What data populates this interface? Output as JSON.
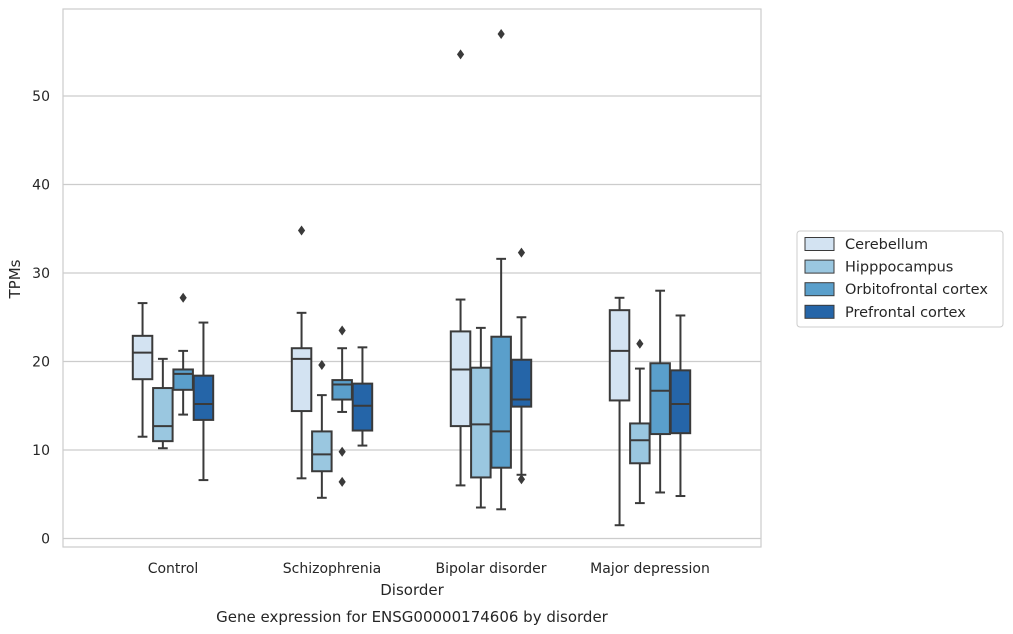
{
  "chart_data": {
    "type": "boxplot",
    "xlabel": "Disorder",
    "ylabel": "TPMs",
    "caption": "Gene expression for ENSG00000174606 by disorder",
    "categories": [
      "Control",
      "Schizophrenia",
      "Bipolar disorder",
      "Major depression"
    ],
    "ylim": [
      -1,
      60
    ],
    "yticks": [
      0,
      10,
      20,
      30,
      40,
      50
    ],
    "grid": "horizontal",
    "legend_position": "right",
    "series": [
      {
        "name": "Cerebellum",
        "color": "#d3e3f2",
        "boxes": [
          {
            "whisker_low": 11.5,
            "q1": 18.0,
            "median": 21.0,
            "q3": 22.9,
            "whisker_high": 26.6,
            "outliers": []
          },
          {
            "whisker_low": 6.8,
            "q1": 14.4,
            "median": 20.3,
            "q3": 21.5,
            "whisker_high": 25.5,
            "outliers": [
              34.8
            ]
          },
          {
            "whisker_low": 6.0,
            "q1": 12.7,
            "median": 19.1,
            "q3": 23.4,
            "whisker_high": 27.0,
            "outliers": [
              54.7
            ]
          },
          {
            "whisker_low": 1.5,
            "q1": 15.6,
            "median": 21.2,
            "q3": 25.8,
            "whisker_high": 27.2,
            "outliers": []
          }
        ]
      },
      {
        "name": "Hipppocampus",
        "color": "#9ac7e0",
        "boxes": [
          {
            "whisker_low": 10.2,
            "q1": 11.0,
            "median": 12.7,
            "q3": 17.0,
            "whisker_high": 20.3,
            "outliers": []
          },
          {
            "whisker_low": 4.6,
            "q1": 7.6,
            "median": 9.5,
            "q3": 12.1,
            "whisker_high": 16.2,
            "outliers": [
              19.6
            ]
          },
          {
            "whisker_low": 3.5,
            "q1": 6.9,
            "median": 12.9,
            "q3": 19.3,
            "whisker_high": 23.8,
            "outliers": []
          },
          {
            "whisker_low": 4.0,
            "q1": 8.5,
            "median": 11.1,
            "q3": 13.0,
            "whisker_high": 19.2,
            "outliers": [
              22.0
            ]
          }
        ]
      },
      {
        "name": "Orbitofrontal cortex",
        "color": "#5a9fcb",
        "boxes": [
          {
            "whisker_low": 14.0,
            "q1": 16.8,
            "median": 18.6,
            "q3": 19.1,
            "whisker_high": 21.2,
            "outliers": [
              27.2
            ]
          },
          {
            "whisker_low": 14.3,
            "q1": 15.7,
            "median": 17.4,
            "q3": 17.9,
            "whisker_high": 21.5,
            "outliers": [
              23.5,
              9.8,
              6.4
            ]
          },
          {
            "whisker_low": 3.3,
            "q1": 8.0,
            "median": 12.1,
            "q3": 22.8,
            "whisker_high": 31.6,
            "outliers": [
              57.0
            ]
          },
          {
            "whisker_low": 5.2,
            "q1": 11.8,
            "median": 16.7,
            "q3": 19.8,
            "whisker_high": 28.0,
            "outliers": []
          }
        ]
      },
      {
        "name": "Prefrontal cortex",
        "color": "#2565a8",
        "boxes": [
          {
            "whisker_low": 6.6,
            "q1": 13.4,
            "median": 15.2,
            "q3": 18.4,
            "whisker_high": 24.4,
            "outliers": []
          },
          {
            "whisker_low": 10.5,
            "q1": 12.2,
            "median": 15.0,
            "q3": 17.5,
            "whisker_high": 21.6,
            "outliers": []
          },
          {
            "whisker_low": 7.2,
            "q1": 14.9,
            "median": 15.7,
            "q3": 20.2,
            "whisker_high": 25.0,
            "outliers": [
              32.3,
              6.7
            ]
          },
          {
            "whisker_low": 4.8,
            "q1": 11.9,
            "median": 15.2,
            "q3": 19.0,
            "whisker_high": 25.2,
            "outliers": []
          }
        ]
      }
    ]
  }
}
